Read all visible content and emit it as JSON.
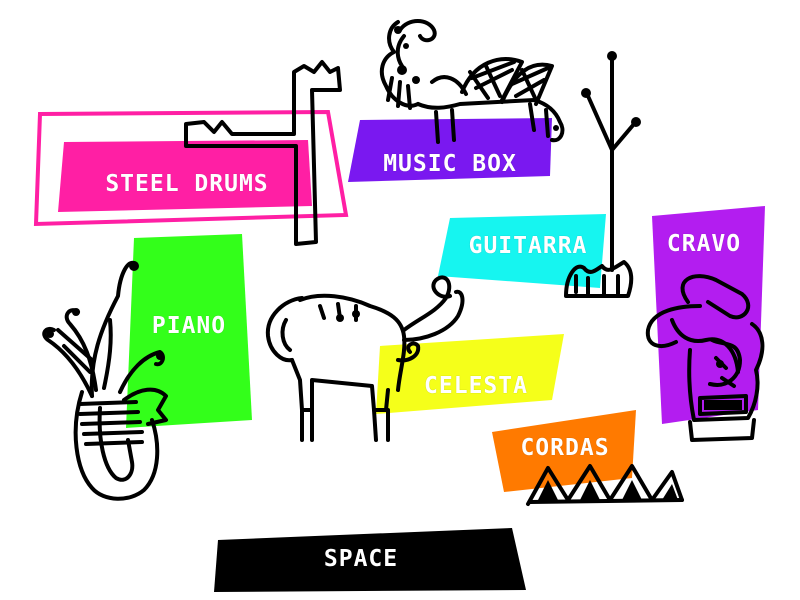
{
  "instruments": [
    {
      "id": "steel-drums",
      "label": "STEEL DRUMS",
      "color": "#ff1fa4"
    },
    {
      "id": "music-box",
      "label": "MUSIC BOX",
      "color": "#7a18f0"
    },
    {
      "id": "guitarra",
      "label": "GUITARRA",
      "color": "#16f5f0"
    },
    {
      "id": "cravo",
      "label": "CRAVO",
      "color": "#b31df0"
    },
    {
      "id": "piano",
      "label": "PIANO",
      "color": "#33ff1a"
    },
    {
      "id": "celesta",
      "label": "CELESTA",
      "color": "#f5ff1a"
    },
    {
      "id": "cordas",
      "label": "CORDAS",
      "color": "#ff7a00"
    }
  ],
  "space": {
    "label": "SPACE",
    "color": "#000000"
  }
}
